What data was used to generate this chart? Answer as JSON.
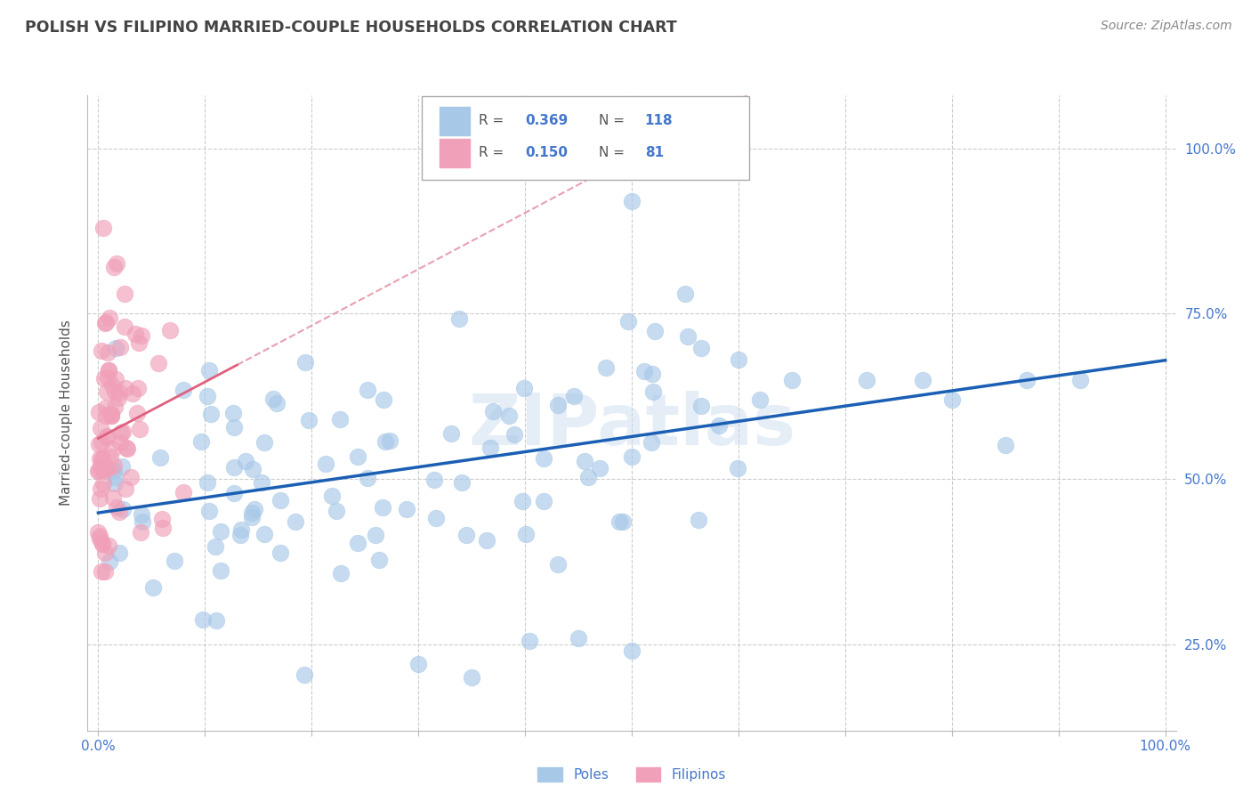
{
  "title": "POLISH VS FILIPINO MARRIED-COUPLE HOUSEHOLDS CORRELATION CHART",
  "source": "Source: ZipAtlas.com",
  "ylabel": "Married-couple Households",
  "poles_R": 0.369,
  "poles_N": 118,
  "filipinos_R": 0.15,
  "filipinos_N": 81,
  "poles_color": "#a8c8e8",
  "filipinos_color": "#f0a0b8",
  "poles_line_color": "#1a5fb4",
  "filipinos_line_solid_color": "#e06080",
  "filipinos_line_dash_color": "#e8a0b0",
  "grid_color": "#cccccc",
  "title_color": "#444444",
  "axis_label_color": "#4477cc",
  "background_color": "#ffffff",
  "watermark": "ZIPatlas",
  "legend_R_color": "#4477cc",
  "legend_N_color": "#4477cc",
  "xlim": [
    -0.01,
    1.01
  ],
  "ylim": [
    0.12,
    1.08
  ],
  "ytick_values": [
    0.25,
    0.5,
    0.75,
    1.0
  ],
  "ytick_labels": [
    "25.0%",
    "50.0%",
    "75.0%",
    "100.0%"
  ]
}
